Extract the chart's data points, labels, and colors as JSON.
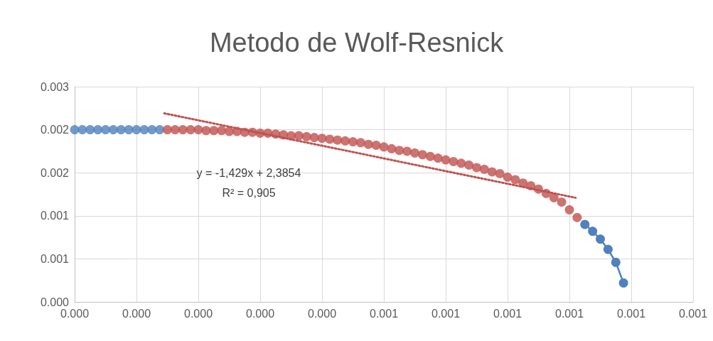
{
  "chart_data": {
    "type": "line",
    "title": "Metodo de Wolf-Resnick",
    "marker": "circle",
    "annotations": [
      "y = -1,429x + 2,3854",
      "R² = 0,905"
    ],
    "series": [
      {
        "color": "#4f81bd",
        "type": "scatter",
        "x": [
          0,
          1.25e-05,
          2.5e-05,
          3.75e-05,
          5e-05,
          6.25e-05,
          7.5e-05,
          8.75e-05,
          0.0001,
          0.0001125,
          0.000125,
          0.0001375
        ],
        "values": [
          0.002,
          0.002,
          0.002,
          0.002,
          0.002,
          0.002,
          0.002,
          0.002,
          0.002,
          0.002,
          0.002,
          0.002
        ]
      },
      {
        "color": "#4f81bd",
        "x": [
          0.000825,
          0.0008375,
          0.00085,
          0.0008625,
          0.000875,
          0.0008875
        ],
        "values": [
          0.0009,
          0.00082,
          0.00073,
          0.00061,
          0.00046,
          0.00022
        ]
      },
      {
        "color": "#c0504d",
        "type": "scatter",
        "x": [
          0.00015,
          0.0001625,
          0.000175,
          0.0001875,
          0.0002,
          0.0002125,
          0.000225,
          0.0002375,
          0.00025,
          0.0002625,
          0.000275,
          0.0002875,
          0.0003,
          0.0003125,
          0.000325,
          0.0003375,
          0.00035,
          0.0003625,
          0.000375,
          0.0003875,
          0.0004,
          0.0004125,
          0.000425,
          0.0004375,
          0.00045,
          0.0004625,
          0.000475,
          0.0004875,
          0.0005,
          0.0005125,
          0.000525,
          0.0005375,
          0.00055,
          0.0005625,
          0.000575,
          0.0005875,
          0.0006,
          0.0006125,
          0.000625,
          0.0006375,
          0.00065,
          0.0006625,
          0.000675,
          0.0006875,
          0.0007,
          0.0007125,
          0.000725,
          0.0007375,
          0.00075,
          0.0007625,
          0.000775,
          0.0007875,
          0.0008,
          0.0008125
        ],
        "values": [
          0.002,
          0.002,
          0.002,
          0.002,
          0.002,
          0.00199,
          0.00199,
          0.00199,
          0.00198,
          0.00198,
          0.00197,
          0.00197,
          0.00196,
          0.00196,
          0.00195,
          0.00194,
          0.00193,
          0.00193,
          0.00192,
          0.00191,
          0.0019,
          0.00189,
          0.00188,
          0.00187,
          0.00186,
          0.00185,
          0.00183,
          0.00182,
          0.0018,
          0.00178,
          0.00176,
          0.00175,
          0.00173,
          0.00171,
          0.00169,
          0.00167,
          0.00165,
          0.00163,
          0.00161,
          0.00159,
          0.00156,
          0.00154,
          0.00151,
          0.00149,
          0.00145,
          0.00142,
          0.00138,
          0.00135,
          0.00131,
          0.00126,
          0.00121,
          0.00116,
          0.00107,
          0.00098
        ]
      },
      {
        "color": "#c0504d",
        "marker": "none",
        "line_style": "dotted",
        "x": [
          0.000145,
          0.00081
        ],
        "values": [
          0.00219,
          0.00121
        ]
      }
    ],
    "xlim": [
      0,
      0.001
    ],
    "ylim": [
      0,
      0.0025
    ],
    "xticks": [
      {
        "value": 0,
        "label": "0.000"
      },
      {
        "value": 0.0001,
        "label": "0.000"
      },
      {
        "value": 0.0002,
        "label": "0.000"
      },
      {
        "value": 0.0003,
        "label": "0.000"
      },
      {
        "value": 0.0004,
        "label": "0.000"
      },
      {
        "value": 0.0005,
        "label": "0.001"
      },
      {
        "value": 0.0006,
        "label": "0.001"
      },
      {
        "value": 0.0007,
        "label": "0.001"
      },
      {
        "value": 0.0008,
        "label": "0.001"
      },
      {
        "value": 0.0009,
        "label": "0.001"
      },
      {
        "value": 0.001,
        "label": "0.001"
      }
    ],
    "yticks": [
      {
        "value": 0,
        "label": "0.000"
      },
      {
        "value": 0.0005,
        "label": "0.001"
      },
      {
        "value": 0.001,
        "label": "0.001"
      },
      {
        "value": 0.0015,
        "label": "0.002"
      },
      {
        "value": 0.002,
        "label": "0.002"
      },
      {
        "value": 0.0025,
        "label": "0.003"
      }
    ],
    "grid": true
  }
}
